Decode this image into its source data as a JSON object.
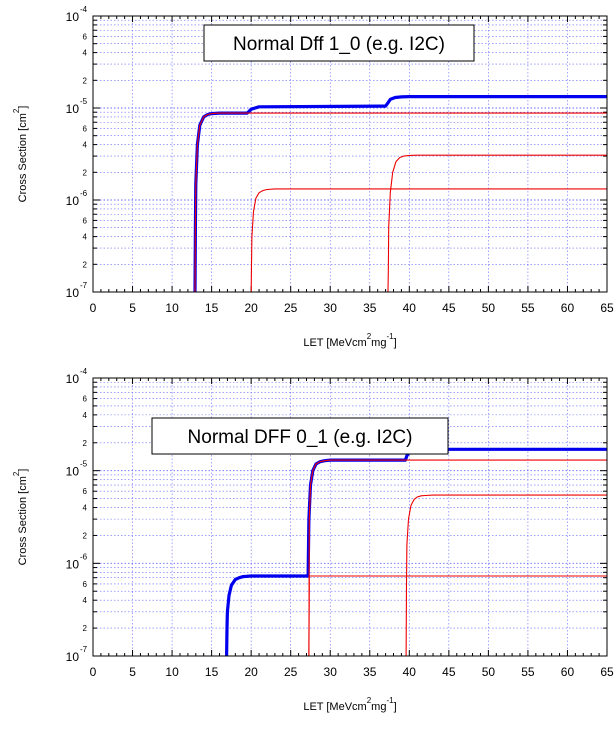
{
  "chart_data": [
    {
      "type": "line",
      "title": "Normal Dff 1_0 (e.g. I2C)",
      "xlabel": "LET [MeVcm",
      "xlabel_sup1": "2",
      "xlabel_mid": "mg",
      "xlabel_sup2": "-1",
      "xlabel_end": "]",
      "ylabel": "Cross Section [cm",
      "ylabel_sup": "2",
      "ylabel_end": "]",
      "xlim": [
        0,
        65
      ],
      "ylim": [
        1e-07,
        0.0001
      ],
      "yscale": "log",
      "grid": true,
      "xticks": [
        "0",
        "5",
        "10",
        "15",
        "20",
        "25",
        "30",
        "35",
        "40",
        "45",
        "50",
        "55",
        "60",
        "65"
      ],
      "ymajor": [
        {
          "base": "10",
          "exp": "-4"
        },
        {
          "base": "10",
          "exp": "-5"
        },
        {
          "base": "10",
          "exp": "-6"
        },
        {
          "base": "10",
          "exp": "-7"
        }
      ],
      "yminor": [
        "6",
        "4",
        "2"
      ],
      "series": [
        {
          "color": "#0000ee",
          "style": "thick",
          "x": [
            12.9,
            12.95,
            13.0,
            13.2,
            13.5,
            14.0,
            14.5,
            15.0,
            16.0,
            17.0,
            19.5,
            20.0,
            21.0,
            37.0,
            37.3,
            37.6,
            38.2,
            39.0,
            40.0,
            65.0
          ],
          "y": [
            1e-07,
            5e-07,
            1.5e-06,
            4e-06,
            6.5e-06,
            8e-06,
            8.5e-06,
            8.7e-06,
            8.8e-06,
            8.8e-06,
            8.8e-06,
            9.7e-06,
            1.03e-05,
            1.05e-05,
            1.14e-05,
            1.24e-05,
            1.3e-05,
            1.32e-05,
            1.33e-05,
            1.33e-05
          ]
        },
        {
          "color": "#ee0000",
          "style": "thin",
          "x": [
            12.9,
            12.95,
            13.0,
            13.2,
            13.5,
            14.0,
            14.5,
            15.0,
            16.0,
            17.0,
            65.0
          ],
          "y": [
            1e-07,
            5e-07,
            1.5e-06,
            4e-06,
            6.5e-06,
            8e-06,
            8.5e-06,
            8.7e-06,
            8.8e-06,
            8.8e-06,
            8.8e-06
          ]
        },
        {
          "color": "#ee0000",
          "style": "thin",
          "x": [
            20.0,
            20.05,
            20.1,
            20.3,
            20.6,
            21.0,
            21.5,
            22.0,
            23.0,
            65.0
          ],
          "y": [
            1e-07,
            2e-07,
            4e-07,
            7.5e-07,
            1.05e-06,
            1.2e-06,
            1.27e-06,
            1.3e-06,
            1.32e-06,
            1.32e-06
          ]
        },
        {
          "color": "#ee0000",
          "style": "thin",
          "x": [
            37.3,
            37.35,
            37.4,
            37.6,
            37.9,
            38.3,
            38.8,
            39.3,
            40.0,
            41.0,
            65.0
          ],
          "y": [
            1e-07,
            2e-07,
            5e-07,
            1.2e-06,
            2e-06,
            2.6e-06,
            2.9e-06,
            3e-06,
            3.05e-06,
            3.07e-06,
            3.07e-06
          ]
        }
      ]
    },
    {
      "type": "line",
      "title": "Normal DFF 0_1 (e.g. I2C)",
      "xlabel": "LET [MeVcm",
      "xlabel_sup1": "2",
      "xlabel_mid": "mg",
      "xlabel_sup2": "-1",
      "xlabel_end": "]",
      "ylabel": "Cross Section [cm",
      "ylabel_sup": "2",
      "ylabel_end": "]",
      "xlim": [
        0,
        65
      ],
      "ylim": [
        1e-07,
        0.0001
      ],
      "yscale": "log",
      "grid": true,
      "xticks": [
        "0",
        "5",
        "10",
        "15",
        "20",
        "25",
        "30",
        "35",
        "40",
        "45",
        "50",
        "55",
        "60",
        "65"
      ],
      "ymajor": [
        {
          "base": "10",
          "exp": "-4"
        },
        {
          "base": "10",
          "exp": "-5"
        },
        {
          "base": "10",
          "exp": "-6"
        },
        {
          "base": "10",
          "exp": "-7"
        }
      ],
      "yminor": [
        "6",
        "4",
        "2"
      ],
      "series": [
        {
          "color": "#0000ee",
          "style": "thick",
          "x": [
            16.9,
            16.95,
            17.0,
            17.2,
            17.5,
            18.0,
            18.5,
            19.0,
            20.0,
            21.0,
            27.2,
            27.3,
            27.5,
            27.8,
            28.2,
            28.7,
            29.3,
            30.0,
            31.0,
            39.5,
            39.7,
            40.0,
            40.5,
            41.2,
            42.0,
            65.0
          ],
          "y": [
            1e-07,
            2e-07,
            3e-07,
            4.5e-07,
            5.8e-07,
            6.7e-07,
            7e-07,
            7.2e-07,
            7.3e-07,
            7.3e-07,
            7.3e-07,
            3e-06,
            7e-06,
            1e-05,
            1.18e-05,
            1.25e-05,
            1.28e-05,
            1.3e-05,
            1.3e-05,
            1.3e-05,
            1.45e-05,
            1.58e-05,
            1.65e-05,
            1.68e-05,
            1.7e-05,
            1.7e-05
          ]
        },
        {
          "color": "#ee0000",
          "style": "thin",
          "x": [
            27.3,
            27.35,
            27.5,
            27.8,
            28.2,
            28.7,
            29.3,
            30.0,
            31.0,
            65.0
          ],
          "y": [
            1e-07,
            3e-06,
            7e-06,
            1e-05,
            1.18e-05,
            1.25e-05,
            1.28e-05,
            1.3e-05,
            1.3e-05,
            1.3e-05
          ]
        },
        {
          "color": "#ee0000",
          "style": "thin",
          "x": [
            27.3,
            27.35,
            65.0
          ],
          "y": [
            1e-07,
            7.3e-07,
            7.3e-07
          ]
        },
        {
          "color": "#ee0000",
          "style": "thin",
          "x": [
            39.6,
            39.65,
            39.7,
            39.9,
            40.2,
            40.6,
            41.0,
            41.5,
            42.0,
            43.0,
            65.0
          ],
          "y": [
            1e-07,
            6e-07,
            1.6e-06,
            3e-06,
            4.2e-06,
            4.9e-06,
            5.2e-06,
            5.35e-06,
            5.4e-06,
            5.45e-06,
            5.45e-06
          ]
        }
      ]
    }
  ]
}
